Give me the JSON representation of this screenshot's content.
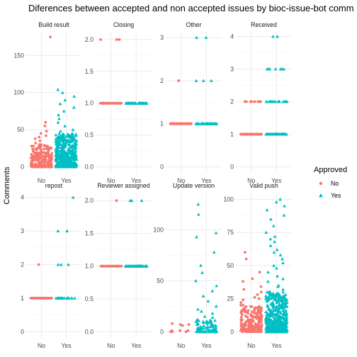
{
  "chart_data": {
    "type": "scatter",
    "title": "Diferences between accepted and non accepted issues by bioc-issue-bot comm",
    "xlabel": "",
    "ylabel": "Comments",
    "categories": [
      "No",
      "Yes"
    ],
    "legend": {
      "title": "Approved",
      "placement": "right",
      "entries": [
        {
          "label": "No",
          "color": "#F8766D",
          "shape": "circle"
        },
        {
          "label": "Yes",
          "color": "#00BFC4",
          "shape": "triangle"
        }
      ]
    },
    "grid": true,
    "facets": [
      {
        "name": "Build result",
        "ylim": [
          0,
          180
        ],
        "yticks": [
          0,
          50,
          100,
          150
        ],
        "points": {
          "No": {
            "bulk_max": 30,
            "n_bulk": 230,
            "extra": [
              32,
              35,
              38,
              40,
              42,
              45,
              48,
              55,
              60,
              175
            ]
          },
          "Yes": {
            "bulk_max": 45,
            "n_bulk": 520,
            "extra": [
              48,
              50,
              55,
              60,
              65,
              70,
              75,
              80,
              85,
              90,
              95,
              100,
              104
            ]
          }
        }
      },
      {
        "name": "Closing",
        "ylim": [
          0,
          2.1
        ],
        "yticks": [
          0.0,
          0.5,
          1.0,
          1.5,
          2.0
        ],
        "points": {
          "No": {
            "bulk_max": 1,
            "bulk_min": 1,
            "n_bulk": 60,
            "extra": [
              2,
              2,
              2
            ]
          },
          "Yes": {
            "bulk_max": 1,
            "bulk_min": 1,
            "n_bulk": 60,
            "extra": []
          }
        }
      },
      {
        "name": "Other",
        "ylim": [
          0,
          3.1
        ],
        "yticks": [
          0,
          1,
          2,
          3
        ],
        "points": {
          "No": {
            "bulk_max": 1,
            "bulk_min": 1,
            "n_bulk": 50,
            "extra": [
              2,
              2
            ]
          },
          "Yes": {
            "bulk_max": 1,
            "bulk_min": 1,
            "n_bulk": 50,
            "extra": [
              2,
              2,
              2,
              3,
              3
            ]
          }
        }
      },
      {
        "name": "Received",
        "ylim": [
          0,
          4.1
        ],
        "yticks": [
          0,
          1,
          2,
          3,
          4
        ],
        "points": {
          "No": {
            "bulk_max": 1,
            "bulk_min": 1,
            "n_bulk": 60,
            "extra": [
              2,
              2,
              2,
              2,
              2,
              2,
              2,
              2,
              2,
              2
            ]
          },
          "Yes": {
            "bulk_max": 1,
            "bulk_min": 1,
            "n_bulk": 80,
            "extra": [
              2,
              2,
              2,
              2,
              2,
              2,
              2,
              2,
              2,
              2,
              2,
              2,
              2,
              2,
              2,
              2,
              2,
              2,
              2,
              2,
              2,
              2,
              2,
              2,
              3,
              3,
              3,
              3,
              3,
              3,
              3,
              4,
              4
            ]
          }
        }
      },
      {
        "name": "repost",
        "ylim": [
          0,
          4.1
        ],
        "yticks": [
          0,
          1,
          2,
          3,
          4
        ],
        "points": {
          "No": {
            "bulk_max": 1,
            "bulk_min": 1,
            "n_bulk": 50,
            "extra": [
              2
            ]
          },
          "Yes": {
            "bulk_max": 1,
            "bulk_min": 1,
            "n_bulk": 20,
            "extra": [
              2,
              2,
              2,
              3,
              3,
              4
            ]
          }
        }
      },
      {
        "name": "Reviewer assigned",
        "ylim": [
          0,
          2.1
        ],
        "yticks": [
          0.0,
          0.5,
          1.0,
          1.5,
          2.0
        ],
        "points": {
          "No": {
            "bulk_max": 1,
            "bulk_min": 1,
            "n_bulk": 60,
            "extra": [
              2
            ]
          },
          "Yes": {
            "bulk_max": 1,
            "bulk_min": 1,
            "n_bulk": 60,
            "extra": [
              2,
              2,
              2
            ]
          }
        }
      },
      {
        "name": "Update version",
        "ylim": [
          0,
          135
        ],
        "yticks": [
          0,
          50,
          100
        ],
        "points": {
          "No": {
            "bulk_max": 8,
            "n_bulk": 10,
            "extra": []
          },
          "Yes": {
            "bulk_max": 12,
            "n_bulk": 80,
            "extra": [
              14,
              15,
              18,
              20,
              22,
              25,
              30,
              35,
              40,
              45,
              50,
              58,
              65,
              78,
              93,
              97,
              115,
              125
            ]
          }
        }
      },
      {
        "name": "Valid push",
        "ylim": [
          0,
          104
        ],
        "yticks": [
          0,
          25,
          50,
          75,
          100
        ],
        "points": {
          "No": {
            "bulk_max": 20,
            "n_bulk": 200,
            "extra": [
              22,
              24,
              25,
              26,
              28,
              30,
              32,
              34,
              38,
              40,
              45,
              55,
              60
            ]
          },
          "Yes": {
            "bulk_max": 30,
            "n_bulk": 520,
            "extra": [
              32,
              34,
              35,
              38,
              40,
              42,
              45,
              48,
              50,
              52,
              55,
              58,
              60,
              62,
              65,
              68,
              70,
              72,
              75,
              80,
              85,
              88,
              92,
              95,
              98,
              100
            ]
          }
        }
      }
    ]
  }
}
